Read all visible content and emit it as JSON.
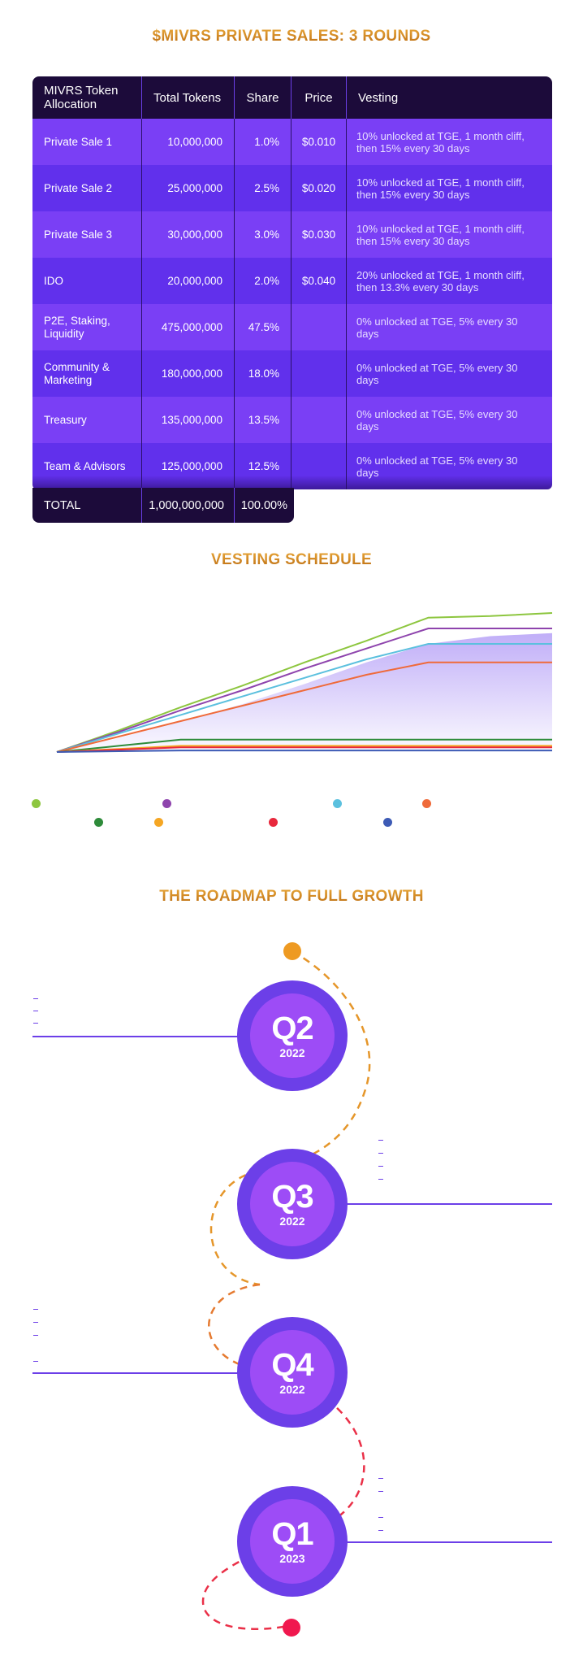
{
  "titles": {
    "private_sales": "$MIVRS PRIVATE SALES: 3 ROUNDS",
    "vesting": "VESTING SCHEDULE",
    "roadmap": "THE ROADMAP TO FULL GROWTH"
  },
  "table": {
    "headers": [
      "MIVRS Token Allocation",
      "Total Tokens",
      "Share",
      "Price",
      "Vesting"
    ],
    "rows": [
      {
        "name": "Private Sale 1",
        "tokens": "10,000,000",
        "share": "1.0%",
        "price": "$0.010",
        "vesting": "10% unlocked at TGE, 1 month cliff, then 15% every 30 days"
      },
      {
        "name": "Private Sale 2",
        "tokens": "25,000,000",
        "share": "2.5%",
        "price": "$0.020",
        "vesting": "10% unlocked at TGE, 1 month cliff, then 15% every 30 days"
      },
      {
        "name": "Private Sale 3",
        "tokens": "30,000,000",
        "share": "3.0%",
        "price": "$0.030",
        "vesting": "10% unlocked at TGE, 1 month cliff, then 15% every 30 days"
      },
      {
        "name": "IDO",
        "tokens": "20,000,000",
        "share": "2.0%",
        "price": "$0.040",
        "vesting": "20% unlocked at TGE, 1 month cliff, then 13.3% every 30 days"
      },
      {
        "name": "P2E, Staking, Liquidity",
        "tokens": "475,000,000",
        "share": "47.5%",
        "price": "",
        "vesting": "0% unlocked at TGE, 5% every 30 days"
      },
      {
        "name": "Community & Marketing",
        "tokens": "180,000,000",
        "share": "18.0%",
        "price": "",
        "vesting": "0% unlocked at TGE, 5% every 30 days"
      },
      {
        "name": "Treasury",
        "tokens": "135,000,000",
        "share": "13.5%",
        "price": "",
        "vesting": "0% unlocked at TGE, 5% every 30 days"
      },
      {
        "name": "Team & Advisors",
        "tokens": "125,000,000",
        "share": "12.5%",
        "price": "",
        "vesting": "0% unlocked at TGE, 5% every 30 days"
      }
    ],
    "total": {
      "label": "TOTAL",
      "tokens": "1,000,000,000",
      "share": "100.00%"
    }
  },
  "chart_data": {
    "type": "line",
    "title": "",
    "xlabel": "",
    "ylabel": "",
    "x": [
      0,
      1,
      2,
      3,
      4,
      5,
      6,
      7,
      8
    ],
    "series": [
      {
        "color": "#8dc63f",
        "values": [
          0,
          0.14,
          0.29,
          0.43,
          0.58,
          0.72,
          0.87,
          0.88,
          0.9
        ]
      },
      {
        "color": "#8e44ad",
        "values": [
          0,
          0.13,
          0.27,
          0.4,
          0.54,
          0.67,
          0.8,
          0.8,
          0.8
        ]
      },
      {
        "color": "#5bc0de",
        "values": [
          0,
          0.12,
          0.24,
          0.36,
          0.48,
          0.6,
          0.7,
          0.7,
          0.7
        ]
      },
      {
        "color": "#ef6a3a",
        "values": [
          0,
          0.1,
          0.2,
          0.3,
          0.4,
          0.5,
          0.58,
          0.58,
          0.58
        ]
      },
      {
        "color": "#2e8b3a",
        "values": [
          0,
          0.04,
          0.08,
          0.08,
          0.08,
          0.08,
          0.08,
          0.08,
          0.08
        ]
      },
      {
        "color": "#f5a623",
        "values": [
          0,
          0.02,
          0.04,
          0.04,
          0.04,
          0.04,
          0.04,
          0.04,
          0.04
        ]
      },
      {
        "color": "#e8283c",
        "values": [
          0,
          0.015,
          0.03,
          0.03,
          0.03,
          0.03,
          0.03,
          0.03,
          0.03
        ]
      },
      {
        "color": "#3d5bb5",
        "values": [
          0,
          0.005,
          0.01,
          0.01,
          0.01,
          0.01,
          0.01,
          0.01,
          0.01
        ]
      }
    ],
    "area": {
      "color": "#8d6cf2",
      "values": [
        0,
        0.09,
        0.2,
        0.31,
        0.44,
        0.58,
        0.7,
        0.75,
        0.77
      ]
    },
    "ylim": [
      0,
      1
    ],
    "grid": false,
    "legend": "bottom"
  },
  "legend_colors": [
    "#8dc63f",
    "#8e44ad",
    "#5bc0de",
    "#ef6a3a",
    "#2e8b3a",
    "#f5a623",
    "#e8283c",
    "#3d5bb5"
  ],
  "roadmap": {
    "colors": {
      "line": "#6c3fe8",
      "start_dot": "#ee9a22",
      "end_dot": "#f0184e"
    },
    "quarters": [
      {
        "q": "Q2",
        "year": "2022"
      },
      {
        "q": "Q3",
        "year": "2022"
      },
      {
        "q": "Q4",
        "year": "2022"
      },
      {
        "q": "Q1",
        "year": "2023"
      }
    ]
  }
}
